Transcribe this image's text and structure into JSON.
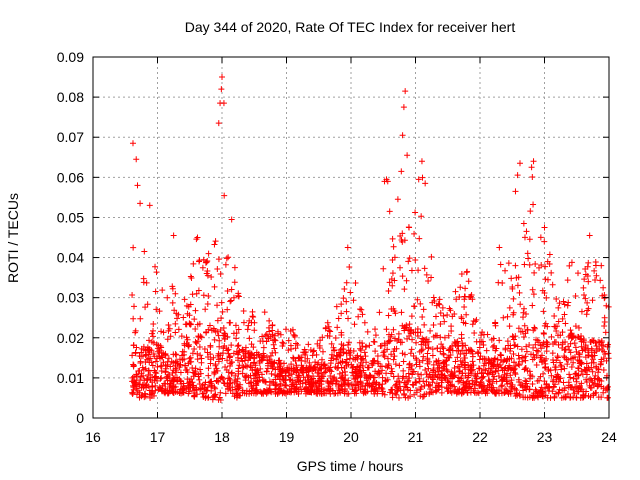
{
  "chart_data": {
    "type": "scatter",
    "title": "Day 344 of 2020, Rate Of TEC Index for receiver hert",
    "xlabel": "GPS time / hours",
    "ylabel": "ROTI / TECUs",
    "xlim": [
      16,
      24
    ],
    "ylim": [
      0,
      0.09
    ],
    "xticks": [
      "16",
      "17",
      "18",
      "19",
      "20",
      "21",
      "22",
      "23",
      "24"
    ],
    "yticks": [
      "0",
      "0.01",
      "0.02",
      "0.03",
      "0.04",
      "0.05",
      "0.06",
      "0.07",
      "0.08",
      "0.09"
    ],
    "grid": true,
    "marker": "plus",
    "color": "#ff0000",
    "series": [
      {
        "name": "ROTI",
        "envelope": {
          "x": [
            16.6,
            16.7,
            16.8,
            16.9,
            17.0,
            17.1,
            17.2,
            17.3,
            17.4,
            17.5,
            17.6,
            17.7,
            17.8,
            17.9,
            18.0,
            18.1,
            18.2,
            18.3,
            18.4,
            18.5,
            18.6,
            18.7,
            18.8,
            18.9,
            19.0,
            19.1,
            19.2,
            19.3,
            19.4,
            19.5,
            19.6,
            19.7,
            19.8,
            19.9,
            20.0,
            20.1,
            20.2,
            20.3,
            20.4,
            20.5,
            20.6,
            20.7,
            20.8,
            20.9,
            21.0,
            21.1,
            21.2,
            21.3,
            21.4,
            21.5,
            21.6,
            21.7,
            21.8,
            21.9,
            22.0,
            22.1,
            22.2,
            22.3,
            22.4,
            22.5,
            22.6,
            22.7,
            22.8,
            22.9,
            23.0,
            23.1,
            23.2,
            23.3,
            23.4,
            23.5,
            23.6,
            23.7,
            23.8,
            23.9,
            24.0
          ],
          "low": [
            0.006,
            0.005,
            0.005,
            0.005,
            0.006,
            0.006,
            0.006,
            0.006,
            0.006,
            0.006,
            0.005,
            0.005,
            0.005,
            0.004,
            0.004,
            0.005,
            0.005,
            0.005,
            0.006,
            0.006,
            0.006,
            0.006,
            0.006,
            0.006,
            0.006,
            0.006,
            0.006,
            0.006,
            0.006,
            0.006,
            0.006,
            0.006,
            0.006,
            0.006,
            0.006,
            0.006,
            0.006,
            0.006,
            0.006,
            0.006,
            0.005,
            0.005,
            0.005,
            0.005,
            0.005,
            0.005,
            0.006,
            0.006,
            0.006,
            0.006,
            0.006,
            0.006,
            0.006,
            0.006,
            0.006,
            0.006,
            0.006,
            0.006,
            0.006,
            0.006,
            0.005,
            0.005,
            0.005,
            0.005,
            0.005,
            0.005,
            0.005,
            0.005,
            0.005,
            0.005,
            0.005,
            0.005,
            0.005,
            0.005,
            0.005
          ],
          "typical": [
            0.017,
            0.018,
            0.017,
            0.016,
            0.017,
            0.016,
            0.015,
            0.015,
            0.016,
            0.017,
            0.019,
            0.02,
            0.02,
            0.021,
            0.022,
            0.02,
            0.018,
            0.017,
            0.016,
            0.015,
            0.015,
            0.014,
            0.014,
            0.013,
            0.013,
            0.013,
            0.012,
            0.012,
            0.012,
            0.013,
            0.013,
            0.014,
            0.015,
            0.018,
            0.017,
            0.015,
            0.014,
            0.015,
            0.016,
            0.018,
            0.02,
            0.021,
            0.022,
            0.022,
            0.021,
            0.02,
            0.018,
            0.017,
            0.016,
            0.017,
            0.018,
            0.019,
            0.018,
            0.017,
            0.015,
            0.014,
            0.014,
            0.015,
            0.017,
            0.019,
            0.02,
            0.021,
            0.022,
            0.022,
            0.021,
            0.021,
            0.02,
            0.02,
            0.02,
            0.019,
            0.019,
            0.019,
            0.018,
            0.018,
            0.017
          ],
          "high": [
            0.069,
            0.058,
            0.048,
            0.054,
            0.04,
            0.034,
            0.046,
            0.032,
            0.03,
            0.034,
            0.045,
            0.041,
            0.043,
            0.075,
            0.085,
            0.05,
            0.038,
            0.028,
            0.025,
            0.027,
            0.03,
            0.025,
            0.023,
            0.022,
            0.025,
            0.023,
            0.02,
            0.019,
            0.018,
            0.02,
            0.025,
            0.027,
            0.029,
            0.034,
            0.043,
            0.031,
            0.025,
            0.023,
            0.027,
            0.04,
            0.052,
            0.048,
            0.082,
            0.065,
            0.052,
            0.064,
            0.055,
            0.035,
            0.028,
            0.03,
            0.032,
            0.036,
            0.037,
            0.028,
            0.022,
            0.022,
            0.024,
            0.042,
            0.045,
            0.052,
            0.063,
            0.05,
            0.065,
            0.05,
            0.048,
            0.04,
            0.03,
            0.031,
            0.04,
            0.038,
            0.036,
            0.044,
            0.046,
            0.035,
            0.03
          ]
        },
        "peaks": [
          {
            "x": 16.62,
            "y": 0.0685
          },
          {
            "x": 16.67,
            "y": 0.0645
          },
          {
            "x": 16.69,
            "y": 0.058
          },
          {
            "x": 16.73,
            "y": 0.0535
          },
          {
            "x": 16.88,
            "y": 0.053
          },
          {
            "x": 17.25,
            "y": 0.0455
          },
          {
            "x": 17.62,
            "y": 0.045
          },
          {
            "x": 17.95,
            "y": 0.0735
          },
          {
            "x": 17.97,
            "y": 0.0785
          },
          {
            "x": 17.99,
            "y": 0.082
          },
          {
            "x": 18.0,
            "y": 0.085
          },
          {
            "x": 18.03,
            "y": 0.0785
          },
          {
            "x": 18.15,
            "y": 0.0495
          },
          {
            "x": 18.2,
            "y": 0.0375
          },
          {
            "x": 19.95,
            "y": 0.0425
          },
          {
            "x": 20.52,
            "y": 0.059
          },
          {
            "x": 20.55,
            "y": 0.0595
          },
          {
            "x": 20.57,
            "y": 0.059
          },
          {
            "x": 20.6,
            "y": 0.0515
          },
          {
            "x": 20.78,
            "y": 0.0615
          },
          {
            "x": 20.8,
            "y": 0.0705
          },
          {
            "x": 20.82,
            "y": 0.0775
          },
          {
            "x": 20.84,
            "y": 0.0815
          },
          {
            "x": 20.87,
            "y": 0.0655
          },
          {
            "x": 20.9,
            "y": 0.0475
          },
          {
            "x": 21.05,
            "y": 0.0595
          },
          {
            "x": 21.1,
            "y": 0.064
          },
          {
            "x": 21.15,
            "y": 0.0585
          },
          {
            "x": 21.8,
            "y": 0.0365
          },
          {
            "x": 22.3,
            "y": 0.0425
          },
          {
            "x": 22.55,
            "y": 0.0565
          },
          {
            "x": 22.62,
            "y": 0.0635
          },
          {
            "x": 22.68,
            "y": 0.0485
          },
          {
            "x": 22.8,
            "y": 0.0625
          },
          {
            "x": 22.83,
            "y": 0.064
          },
          {
            "x": 23.0,
            "y": 0.0475
          },
          {
            "x": 23.05,
            "y": 0.039
          },
          {
            "x": 23.7,
            "y": 0.0455
          },
          {
            "x": 23.88,
            "y": 0.038
          }
        ]
      }
    ]
  }
}
